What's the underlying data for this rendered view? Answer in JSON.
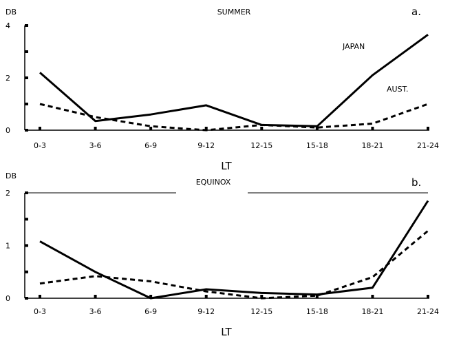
{
  "chart_data": [
    {
      "type": "line",
      "panel": "a.",
      "title": "SUMMER",
      "ylabel": "DB",
      "xlabel": "LT",
      "ylim": [
        0,
        4
      ],
      "yticks": [
        "0",
        "2",
        "4"
      ],
      "categories": [
        "0-3",
        "3-6",
        "6-9",
        "9-12",
        "12-15",
        "15-18",
        "18-21",
        "21-24"
      ],
      "series": [
        {
          "name": "JAPAN",
          "style": "solid",
          "values": [
            2.2,
            0.35,
            0.6,
            0.95,
            0.2,
            0.15,
            2.1,
            3.65
          ]
        },
        {
          "name": "AUST.",
          "style": "dashed",
          "values": [
            1.0,
            0.5,
            0.15,
            0.0,
            0.2,
            0.1,
            0.25,
            1.0
          ]
        }
      ]
    },
    {
      "type": "line",
      "panel": "b.",
      "title": "EQUINOX",
      "ylabel": "DB",
      "xlabel": "LT",
      "ylim": [
        0,
        2
      ],
      "yticks": [
        "0",
        "1",
        "2"
      ],
      "categories": [
        "0-3",
        "3-6",
        "6-9",
        "9-12",
        "12-15",
        "15-18",
        "18-21",
        "21-24"
      ],
      "series": [
        {
          "style": "solid",
          "values": [
            1.08,
            0.5,
            0.0,
            0.17,
            0.1,
            0.07,
            0.2,
            1.85
          ]
        },
        {
          "style": "dashed",
          "values": [
            0.28,
            0.42,
            0.32,
            0.13,
            0.0,
            0.05,
            0.4,
            1.28
          ]
        }
      ]
    }
  ],
  "colors": {
    "ink": "#000000",
    "background": "#ffffff"
  }
}
